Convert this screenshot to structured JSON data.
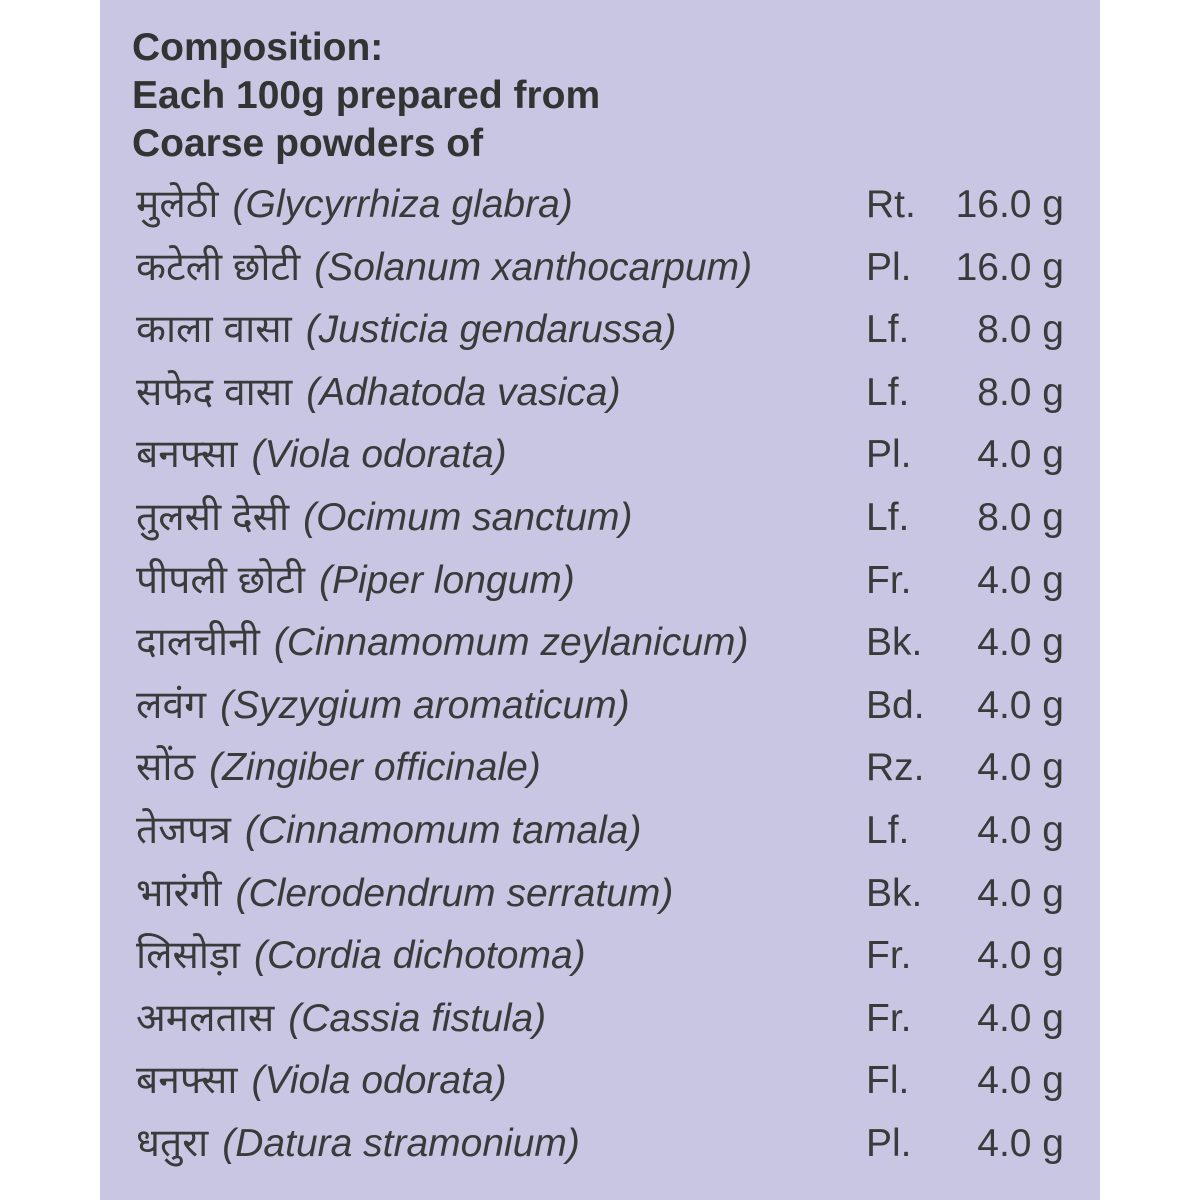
{
  "header": {
    "line1": "Composition:",
    "line2": "Each 100g prepared from",
    "line3": "Coarse powders of"
  },
  "colors": {
    "panel_background": "#c9c6e3",
    "text": "#3a3a3a"
  },
  "ingredients": [
    {
      "hindi": "मुलेठी",
      "latin": "(Glycyrrhiza glabra)",
      "part": "Rt.",
      "qty": "16.0 g"
    },
    {
      "hindi": "कटेली छोटी",
      "latin": "(Solanum xanthocarpum)",
      "part": "Pl.",
      "qty": "16.0 g"
    },
    {
      "hindi": "काला वासा",
      "latin": "(Justicia gendarussa)",
      "part": "Lf.",
      "qty": "8.0 g"
    },
    {
      "hindi": "सफेद वासा",
      "latin": "(Adhatoda vasica)",
      "part": "Lf.",
      "qty": "8.0 g"
    },
    {
      "hindi": "बनफ्सा",
      "latin": "(Viola odorata)",
      "part": "Pl.",
      "qty": "4.0 g"
    },
    {
      "hindi": "तुलसी देसी",
      "latin": "(Ocimum sanctum)",
      "part": "Lf.",
      "qty": "8.0 g"
    },
    {
      "hindi": "पीपली छोटी",
      "latin": "(Piper longum)",
      "part": "Fr.",
      "qty": "4.0 g"
    },
    {
      "hindi": "दालचीनी",
      "latin": "(Cinnamomum zeylanicum)",
      "part": "Bk.",
      "qty": "4.0 g"
    },
    {
      "hindi": "लवंग",
      "latin": "(Syzygium aromaticum)",
      "part": "Bd.",
      "qty": "4.0 g"
    },
    {
      "hindi": "सोंठ",
      "latin": "(Zingiber officinale)",
      "part": "Rz.",
      "qty": "4.0 g"
    },
    {
      "hindi": "तेजपत्र",
      "latin": "(Cinnamomum tamala)",
      "part": "Lf.",
      "qty": "4.0 g"
    },
    {
      "hindi": "भारंगी",
      "latin": "(Clerodendrum serratum)",
      "part": "Bk.",
      "qty": "4.0 g"
    },
    {
      "hindi": "लिसोड़ा",
      "latin": "(Cordia dichotoma)",
      "part": "Fr.",
      "qty": "4.0 g"
    },
    {
      "hindi": "अमलतास",
      "latin": "(Cassia fistula)",
      "part": "Fr.",
      "qty": "4.0 g"
    },
    {
      "hindi": "बनफ्सा",
      "latin": "(Viola odorata)",
      "part": "Fl.",
      "qty": "4.0 g"
    },
    {
      "hindi": "धतुरा",
      "latin": "(Datura stramonium)",
      "part": "Pl.",
      "qty": "4.0 g"
    }
  ]
}
